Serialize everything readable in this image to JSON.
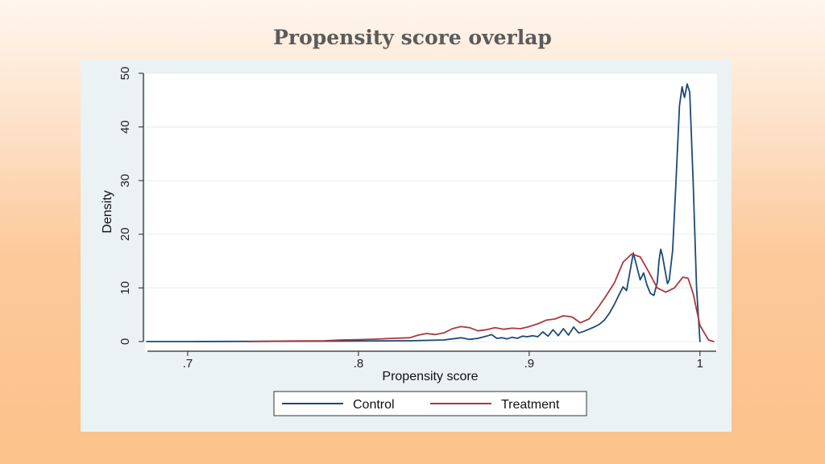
{
  "slide": {
    "title": "Propensity score overlap"
  },
  "chart_data": {
    "type": "line",
    "title": "",
    "xlabel": "Propensity score",
    "ylabel": "Density",
    "xlim": [
      0.675,
      1.01
    ],
    "ylim": [
      0,
      50
    ],
    "x_ticks": [
      0.7,
      0.8,
      0.9,
      1.0
    ],
    "x_tick_labels": [
      ".7",
      ".8",
      ".9",
      "1"
    ],
    "y_ticks": [
      0,
      10,
      20,
      30,
      40,
      50
    ],
    "y_tick_labels": [
      "0",
      "10",
      "20",
      "30",
      "40",
      "50"
    ],
    "grid": true,
    "legend": {
      "position": "bottom",
      "entries": [
        "Control",
        "Treatment"
      ]
    },
    "series": [
      {
        "name": "Control",
        "color": "#1c4a78",
        "points": [
          [
            0.676,
            0.0
          ],
          [
            0.7,
            0.0
          ],
          [
            0.75,
            0.05
          ],
          [
            0.8,
            0.1
          ],
          [
            0.83,
            0.15
          ],
          [
            0.85,
            0.3
          ],
          [
            0.855,
            0.5
          ],
          [
            0.86,
            0.7
          ],
          [
            0.865,
            0.4
          ],
          [
            0.87,
            0.6
          ],
          [
            0.875,
            1.0
          ],
          [
            0.878,
            1.3
          ],
          [
            0.881,
            0.6
          ],
          [
            0.884,
            0.7
          ],
          [
            0.887,
            0.5
          ],
          [
            0.89,
            0.8
          ],
          [
            0.893,
            0.6
          ],
          [
            0.896,
            1.0
          ],
          [
            0.899,
            0.9
          ],
          [
            0.902,
            1.1
          ],
          [
            0.905,
            0.9
          ],
          [
            0.908,
            1.8
          ],
          [
            0.911,
            1.0
          ],
          [
            0.914,
            2.2
          ],
          [
            0.917,
            1.1
          ],
          [
            0.92,
            2.4
          ],
          [
            0.923,
            1.2
          ],
          [
            0.926,
            2.7
          ],
          [
            0.929,
            1.6
          ],
          [
            0.932,
            1.9
          ],
          [
            0.935,
            2.3
          ],
          [
            0.938,
            2.7
          ],
          [
            0.941,
            3.2
          ],
          [
            0.944,
            4.0
          ],
          [
            0.947,
            5.3
          ],
          [
            0.95,
            7.0
          ],
          [
            0.953,
            9.0
          ],
          [
            0.955,
            10.2
          ],
          [
            0.957,
            9.5
          ],
          [
            0.959,
            13.0
          ],
          [
            0.961,
            16.5
          ],
          [
            0.963,
            14.0
          ],
          [
            0.965,
            11.5
          ],
          [
            0.967,
            12.8
          ],
          [
            0.969,
            10.5
          ],
          [
            0.971,
            9.0
          ],
          [
            0.973,
            8.6
          ],
          [
            0.975,
            11.0
          ],
          [
            0.976,
            15.0
          ],
          [
            0.977,
            17.2
          ],
          [
            0.978,
            16.0
          ],
          [
            0.98,
            12.5
          ],
          [
            0.981,
            10.8
          ],
          [
            0.982,
            11.5
          ],
          [
            0.984,
            17.0
          ],
          [
            0.986,
            30.0
          ],
          [
            0.988,
            44.0
          ],
          [
            0.9895,
            47.5
          ],
          [
            0.9905,
            46.0
          ],
          [
            0.991,
            45.5
          ],
          [
            0.9925,
            48.0
          ],
          [
            0.994,
            46.5
          ],
          [
            0.996,
            30.0
          ],
          [
            0.998,
            10.0
          ],
          [
            1.0,
            0.0
          ]
        ]
      },
      {
        "name": "Treatment",
        "color": "#a83a3e",
        "points": [
          [
            0.735,
            0.0
          ],
          [
            0.76,
            0.1
          ],
          [
            0.78,
            0.15
          ],
          [
            0.79,
            0.3
          ],
          [
            0.8,
            0.35
          ],
          [
            0.81,
            0.45
          ],
          [
            0.82,
            0.6
          ],
          [
            0.83,
            0.7
          ],
          [
            0.835,
            1.2
          ],
          [
            0.84,
            1.5
          ],
          [
            0.845,
            1.3
          ],
          [
            0.85,
            1.6
          ],
          [
            0.855,
            2.4
          ],
          [
            0.86,
            2.8
          ],
          [
            0.865,
            2.6
          ],
          [
            0.87,
            2.0
          ],
          [
            0.875,
            2.2
          ],
          [
            0.88,
            2.6
          ],
          [
            0.885,
            2.3
          ],
          [
            0.89,
            2.5
          ],
          [
            0.895,
            2.4
          ],
          [
            0.9,
            2.8
          ],
          [
            0.905,
            3.3
          ],
          [
            0.91,
            4.0
          ],
          [
            0.915,
            4.2
          ],
          [
            0.92,
            4.8
          ],
          [
            0.925,
            4.6
          ],
          [
            0.93,
            3.5
          ],
          [
            0.935,
            4.2
          ],
          [
            0.94,
            6.2
          ],
          [
            0.945,
            8.5
          ],
          [
            0.95,
            11.0
          ],
          [
            0.955,
            14.8
          ],
          [
            0.96,
            16.3
          ],
          [
            0.965,
            15.8
          ],
          [
            0.97,
            13.0
          ],
          [
            0.975,
            10.0
          ],
          [
            0.98,
            9.2
          ],
          [
            0.985,
            10.0
          ],
          [
            0.99,
            12.0
          ],
          [
            0.993,
            11.8
          ],
          [
            0.996,
            9.0
          ],
          [
            1.0,
            3.0
          ],
          [
            1.005,
            0.3
          ],
          [
            1.008,
            0.0
          ]
        ]
      }
    ]
  }
}
